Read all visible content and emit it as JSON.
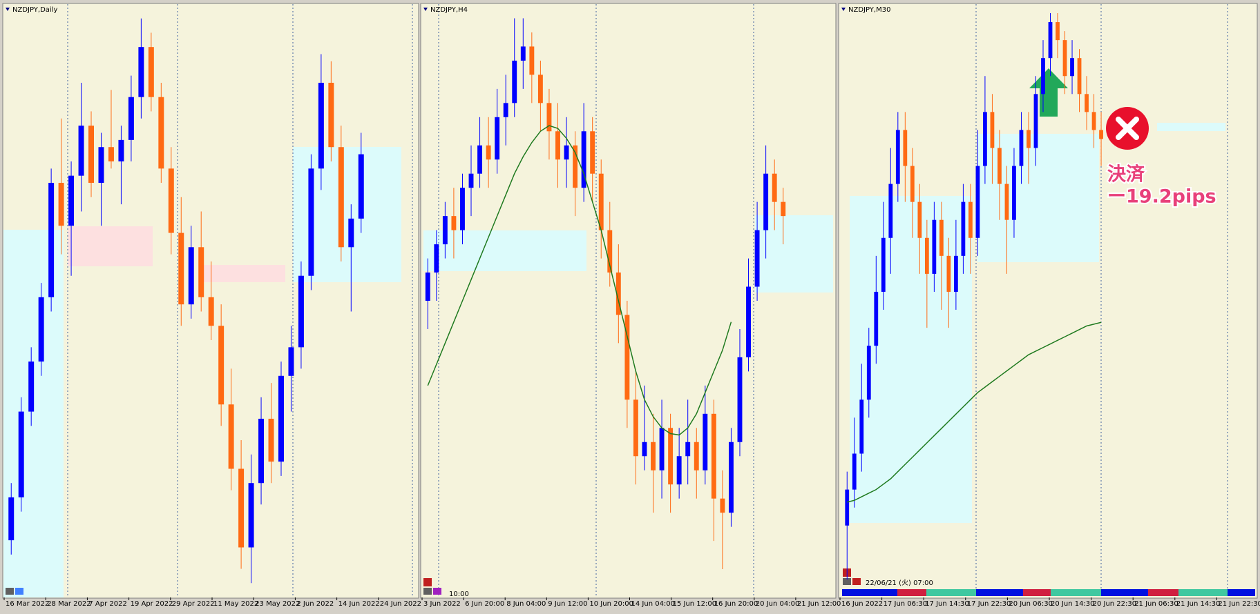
{
  "chart_data": [
    {
      "type": "candlestick",
      "title": "NZDJPY,Daily",
      "x_labels": [
        "16 Mar 2022",
        "28 Mar 2022",
        "7 Apr 2022",
        "19 Apr 2022",
        "29 Apr 2022",
        "11 May 2022",
        "23 May 2022",
        "2 Jun 2022",
        "14 Jun 2022",
        "24 Jun 2022"
      ],
      "ylim": [
        79.8,
        88.1
      ],
      "colors": {
        "up": "#0000ff",
        "down": "#ff6a13",
        "ma": "#1f7a1f"
      },
      "ohlc": [
        [
          80.6,
          81.4,
          80.4,
          81.2
        ],
        [
          81.2,
          82.6,
          81.0,
          82.4
        ],
        [
          82.4,
          83.3,
          82.2,
          83.1
        ],
        [
          83.1,
          84.2,
          82.9,
          84.0
        ],
        [
          84.0,
          85.8,
          83.8,
          85.6
        ],
        [
          85.6,
          86.5,
          84.6,
          85.0
        ],
        [
          85.0,
          85.9,
          84.3,
          85.7
        ],
        [
          85.7,
          87.0,
          85.2,
          86.4
        ],
        [
          86.4,
          86.6,
          85.4,
          85.6
        ],
        [
          85.6,
          86.3,
          85.0,
          86.1
        ],
        [
          86.1,
          86.9,
          85.8,
          85.9
        ],
        [
          85.9,
          86.4,
          85.3,
          86.2
        ],
        [
          86.2,
          87.1,
          85.9,
          86.8
        ],
        [
          86.8,
          87.9,
          86.5,
          87.5
        ],
        [
          87.5,
          87.7,
          86.6,
          86.8
        ],
        [
          86.8,
          87.0,
          85.6,
          85.8
        ],
        [
          85.8,
          86.1,
          84.6,
          84.9
        ],
        [
          84.9,
          85.4,
          83.6,
          83.9
        ],
        [
          83.9,
          85.0,
          83.7,
          84.7
        ],
        [
          84.7,
          85.2,
          83.8,
          84.0
        ],
        [
          84.0,
          84.5,
          83.4,
          83.6
        ],
        [
          83.6,
          83.9,
          82.2,
          82.5
        ],
        [
          82.5,
          83.0,
          81.3,
          81.6
        ],
        [
          81.6,
          82.0,
          80.2,
          80.5
        ],
        [
          80.5,
          81.8,
          80.0,
          81.4
        ],
        [
          81.4,
          82.6,
          81.1,
          82.3
        ],
        [
          82.3,
          82.8,
          81.4,
          81.7
        ],
        [
          81.7,
          83.1,
          81.5,
          82.9
        ],
        [
          82.9,
          83.6,
          82.4,
          83.3
        ],
        [
          83.3,
          84.5,
          83.0,
          84.3
        ],
        [
          84.3,
          86.0,
          84.1,
          85.8
        ],
        [
          85.8,
          87.4,
          85.5,
          87.0
        ],
        [
          87.0,
          87.3,
          85.9,
          86.1
        ],
        [
          86.1,
          86.4,
          84.5,
          84.7
        ],
        [
          84.7,
          85.3,
          83.8,
          85.1
        ],
        [
          85.1,
          86.3,
          84.9,
          86.0
        ]
      ]
    },
    {
      "type": "candlestick",
      "title": "NZDJPY,H4",
      "x_labels": [
        "3 Jun 2022",
        "6 Jun 20:00",
        "8 Jun 04:00",
        "9 Jun 12:00",
        "10 Jun 20:00",
        "14 Jun 04:00",
        "15 Jun 12:00",
        "16 Jun 20:00",
        "20 Jun 04:00",
        "21 Jun 12:00"
      ],
      "cursor_label": "10:00",
      "ylim": [
        83.4,
        87.6
      ],
      "colors": {
        "up": "#0000ff",
        "down": "#ff6a13",
        "ma": "#1f7a1f"
      },
      "ohlc": [
        [
          85.5,
          85.8,
          85.3,
          85.7
        ],
        [
          85.7,
          86.0,
          85.5,
          85.9
        ],
        [
          85.9,
          86.2,
          85.8,
          86.1
        ],
        [
          86.1,
          86.3,
          85.8,
          86.0
        ],
        [
          86.0,
          86.4,
          85.9,
          86.3
        ],
        [
          86.3,
          86.6,
          86.1,
          86.4
        ],
        [
          86.4,
          86.8,
          86.3,
          86.6
        ],
        [
          86.6,
          86.8,
          86.3,
          86.5
        ],
        [
          86.5,
          87.0,
          86.4,
          86.8
        ],
        [
          86.8,
          87.1,
          86.6,
          86.9
        ],
        [
          86.9,
          87.5,
          86.8,
          87.2
        ],
        [
          87.2,
          87.5,
          87.0,
          87.3
        ],
        [
          87.3,
          87.4,
          86.9,
          87.1
        ],
        [
          87.1,
          87.2,
          86.7,
          86.9
        ],
        [
          86.9,
          87.0,
          86.5,
          86.7
        ],
        [
          86.7,
          86.9,
          86.3,
          86.5
        ],
        [
          86.5,
          86.8,
          86.3,
          86.6
        ],
        [
          86.6,
          86.7,
          86.1,
          86.3
        ],
        [
          86.3,
          86.9,
          86.2,
          86.7
        ],
        [
          86.7,
          86.8,
          86.2,
          86.4
        ],
        [
          86.4,
          86.5,
          85.8,
          86.0
        ],
        [
          86.0,
          86.2,
          85.6,
          85.7
        ],
        [
          85.7,
          85.9,
          85.2,
          85.4
        ],
        [
          85.4,
          85.5,
          84.6,
          84.8
        ],
        [
          84.8,
          85.0,
          84.2,
          84.4
        ],
        [
          84.4,
          84.9,
          84.3,
          84.5
        ],
        [
          84.5,
          84.7,
          84.0,
          84.3
        ],
        [
          84.3,
          84.8,
          84.1,
          84.6
        ],
        [
          84.6,
          84.7,
          84.0,
          84.2
        ],
        [
          84.2,
          84.6,
          84.1,
          84.4
        ],
        [
          84.4,
          84.8,
          84.2,
          84.5
        ],
        [
          84.5,
          84.6,
          84.1,
          84.3
        ],
        [
          84.3,
          84.9,
          84.2,
          84.7
        ],
        [
          84.7,
          84.8,
          83.8,
          84.1
        ],
        [
          84.1,
          84.3,
          83.6,
          84.0
        ],
        [
          84.0,
          84.6,
          83.9,
          84.5
        ],
        [
          84.5,
          85.3,
          84.4,
          85.1
        ],
        [
          85.1,
          85.8,
          85.0,
          85.6
        ],
        [
          85.6,
          86.2,
          85.5,
          86.0
        ],
        [
          86.0,
          86.6,
          85.8,
          86.4
        ],
        [
          86.4,
          86.5,
          86.0,
          86.2
        ],
        [
          86.2,
          86.3,
          85.9,
          86.1
        ]
      ],
      "ma": [
        84.9,
        85.05,
        85.2,
        85.35,
        85.5,
        85.65,
        85.8,
        85.95,
        86.1,
        86.25,
        86.4,
        86.52,
        86.62,
        86.7,
        86.74,
        86.72,
        86.65,
        86.55,
        86.4,
        86.2,
        86.0,
        85.75,
        85.5,
        85.25,
        85.0,
        84.8,
        84.68,
        84.6,
        84.56,
        84.55,
        84.6,
        84.7,
        84.85,
        85.0,
        85.15,
        85.35,
        null,
        null,
        null,
        null,
        null,
        null
      ]
    },
    {
      "type": "candlestick",
      "title": "NZDJPY,M30",
      "x_labels": [
        "16 Jun 2022",
        "17 Jun 06:30",
        "17 Jun 14:30",
        "17 Jun 22:30",
        "20 Jun 06:30",
        "20 Jun 14:30",
        "20 Jun 22:30",
        "21 Jun 06:30",
        "21 Jun 14:30",
        "21 Jun 22:30"
      ],
      "cursor_label": "22/06/21 (火) 07:00",
      "annotations": [
        "決済",
        "ー19.2pips"
      ],
      "ylim": [
        83.8,
        87.1
      ],
      "colors": {
        "up": "#0000ff",
        "down": "#ff6a13",
        "ma": "#1f7a1f"
      },
      "ohlc": [
        [
          84.2,
          84.5,
          83.9,
          84.4
        ],
        [
          84.4,
          84.8,
          84.3,
          84.6
        ],
        [
          84.6,
          85.1,
          84.5,
          84.9
        ],
        [
          84.9,
          85.3,
          84.8,
          85.2
        ],
        [
          85.2,
          85.7,
          85.1,
          85.5
        ],
        [
          85.5,
          86.0,
          85.4,
          85.8
        ],
        [
          85.8,
          86.3,
          85.6,
          86.1
        ],
        [
          86.1,
          86.5,
          86.0,
          86.4
        ],
        [
          86.4,
          86.5,
          86.0,
          86.2
        ],
        [
          86.2,
          86.3,
          85.8,
          86.0
        ],
        [
          86.0,
          86.1,
          85.6,
          85.8
        ],
        [
          85.8,
          85.9,
          85.3,
          85.6
        ],
        [
          85.6,
          86.0,
          85.5,
          85.9
        ],
        [
          85.9,
          86.0,
          85.4,
          85.7
        ],
        [
          85.7,
          85.8,
          85.3,
          85.5
        ],
        [
          85.5,
          85.9,
          85.4,
          85.7
        ],
        [
          85.7,
          86.1,
          85.6,
          86.0
        ],
        [
          86.0,
          86.1,
          85.6,
          85.8
        ],
        [
          85.8,
          86.4,
          85.7,
          86.2
        ],
        [
          86.2,
          86.7,
          86.1,
          86.5
        ],
        [
          86.5,
          86.6,
          86.1,
          86.3
        ],
        [
          86.3,
          86.4,
          85.9,
          86.1
        ],
        [
          86.1,
          86.2,
          85.6,
          85.9
        ],
        [
          85.9,
          86.3,
          85.8,
          86.2
        ],
        [
          86.2,
          86.5,
          86.1,
          86.4
        ],
        [
          86.4,
          86.5,
          86.1,
          86.3
        ],
        [
          86.3,
          86.7,
          86.2,
          86.6
        ],
        [
          86.6,
          86.9,
          86.5,
          86.8
        ],
        [
          86.8,
          87.05,
          86.7,
          87.0
        ],
        [
          87.0,
          87.05,
          86.8,
          86.9
        ],
        [
          86.9,
          86.95,
          86.6,
          86.7
        ],
        [
          86.7,
          86.9,
          86.6,
          86.8
        ],
        [
          86.8,
          86.85,
          86.5,
          86.6
        ],
        [
          86.6,
          86.7,
          86.4,
          86.5
        ],
        [
          86.5,
          86.6,
          86.3,
          86.4
        ],
        [
          86.4,
          86.5,
          86.2,
          86.35
        ]
      ],
      "ma": [
        84.33,
        84.34,
        84.36,
        84.38,
        84.4,
        84.43,
        84.46,
        84.5,
        84.54,
        84.58,
        84.62,
        84.66,
        84.7,
        84.74,
        84.78,
        84.82,
        84.86,
        84.9,
        84.94,
        84.97,
        85.0,
        85.03,
        85.06,
        85.09,
        85.12,
        85.15,
        85.17,
        85.19,
        85.21,
        85.23,
        85.25,
        85.27,
        85.29,
        85.31,
        85.32,
        85.33
      ]
    }
  ]
}
